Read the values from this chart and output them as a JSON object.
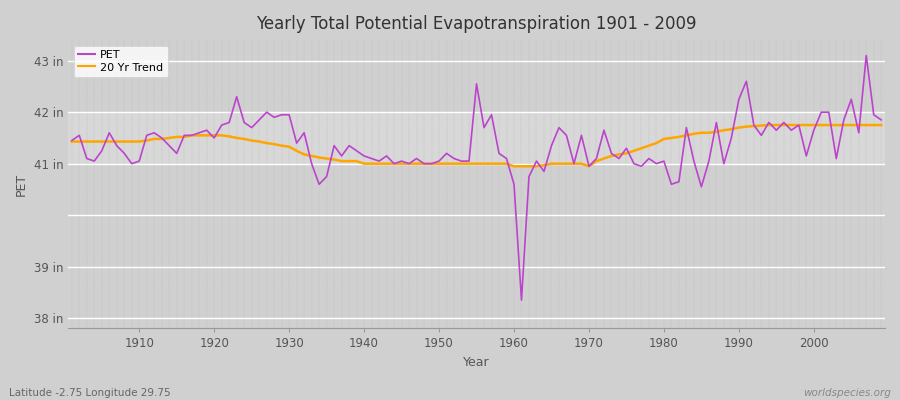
{
  "title": "Yearly Total Potential Evapotranspiration 1901 - 2009",
  "ylabel": "PET",
  "xlabel": "Year",
  "pet_color": "#bb44cc",
  "trend_color": "#ffa500",
  "bg_color": "#d8d8d8",
  "plot_bg_color": "#d8d8d8",
  "footer_left": "Latitude -2.75 Longitude 29.75",
  "footer_right": "worldspecies.org",
  "ylim": [
    37.8,
    43.4
  ],
  "ytick_labels": [
    "38 in",
    "39 in",
    "41 in",
    "42 in",
    "43 in"
  ],
  "ytick_values": [
    38,
    39,
    41,
    42,
    43
  ],
  "years": [
    1901,
    1902,
    1903,
    1904,
    1905,
    1906,
    1907,
    1908,
    1909,
    1910,
    1911,
    1912,
    1913,
    1914,
    1915,
    1916,
    1917,
    1918,
    1919,
    1920,
    1921,
    1922,
    1923,
    1924,
    1925,
    1926,
    1927,
    1928,
    1929,
    1930,
    1931,
    1932,
    1933,
    1934,
    1935,
    1936,
    1937,
    1938,
    1939,
    1940,
    1941,
    1942,
    1943,
    1944,
    1945,
    1946,
    1947,
    1948,
    1949,
    1950,
    1951,
    1952,
    1953,
    1954,
    1955,
    1956,
    1957,
    1958,
    1959,
    1960,
    1961,
    1962,
    1963,
    1964,
    1965,
    1966,
    1967,
    1968,
    1969,
    1970,
    1971,
    1972,
    1973,
    1974,
    1975,
    1976,
    1977,
    1978,
    1979,
    1980,
    1981,
    1982,
    1983,
    1984,
    1985,
    1986,
    1987,
    1988,
    1989,
    1990,
    1991,
    1992,
    1993,
    1994,
    1995,
    1996,
    1997,
    1998,
    1999,
    2000,
    2001,
    2002,
    2003,
    2004,
    2005,
    2006,
    2007,
    2008,
    2009
  ],
  "pet_values": [
    41.45,
    41.55,
    41.1,
    41.05,
    41.25,
    41.6,
    41.35,
    41.2,
    41.0,
    41.05,
    41.55,
    41.6,
    41.5,
    41.35,
    41.2,
    41.55,
    41.55,
    41.6,
    41.65,
    41.5,
    41.75,
    41.8,
    42.3,
    41.8,
    41.7,
    41.85,
    42.0,
    41.9,
    41.95,
    41.95,
    41.4,
    41.6,
    41.0,
    40.6,
    40.75,
    41.35,
    41.15,
    41.35,
    41.25,
    41.15,
    41.1,
    41.05,
    41.15,
    41.0,
    41.05,
    41.0,
    41.1,
    41.0,
    41.0,
    41.05,
    41.2,
    41.1,
    41.05,
    41.05,
    42.55,
    41.7,
    41.95,
    41.2,
    41.1,
    40.6,
    38.35,
    40.75,
    41.05,
    40.85,
    41.35,
    41.7,
    41.55,
    41.0,
    41.55,
    40.95,
    41.1,
    41.65,
    41.2,
    41.1,
    41.3,
    41.0,
    40.95,
    41.1,
    41.0,
    41.05,
    40.6,
    40.65,
    41.7,
    41.05,
    40.55,
    41.05,
    41.8,
    41.0,
    41.5,
    42.25,
    42.6,
    41.75,
    41.55,
    41.8,
    41.65,
    41.8,
    41.65,
    41.75,
    41.15,
    41.65,
    42.0,
    42.0,
    41.1,
    41.85,
    42.25,
    41.6,
    43.1,
    41.95,
    41.85
  ],
  "trend_values": [
    41.43,
    41.43,
    41.43,
    41.43,
    41.43,
    41.43,
    41.43,
    41.43,
    41.43,
    41.43,
    41.45,
    41.48,
    41.48,
    41.5,
    41.52,
    41.52,
    41.55,
    41.55,
    41.55,
    41.55,
    41.55,
    41.53,
    41.5,
    41.48,
    41.45,
    41.43,
    41.4,
    41.38,
    41.35,
    41.33,
    41.25,
    41.18,
    41.15,
    41.12,
    41.1,
    41.08,
    41.05,
    41.05,
    41.05,
    41.0,
    41.0,
    41.0,
    41.0,
    41.0,
    41.0,
    41.0,
    41.0,
    41.0,
    41.0,
    41.0,
    41.0,
    41.0,
    41.0,
    41.0,
    41.0,
    41.0,
    41.0,
    41.0,
    41.0,
    40.95,
    40.95,
    40.95,
    40.95,
    40.97,
    41.0,
    41.0,
    41.0,
    41.0,
    41.0,
    40.95,
    41.05,
    41.1,
    41.15,
    41.18,
    41.2,
    41.25,
    41.3,
    41.35,
    41.4,
    41.48,
    41.5,
    41.52,
    41.55,
    41.58,
    41.6,
    41.6,
    41.62,
    41.65,
    41.67,
    41.7,
    41.72,
    41.73,
    41.74,
    41.75,
    41.75,
    41.75,
    41.75,
    41.75,
    41.75,
    41.75,
    41.75,
    41.75,
    41.75,
    41.75,
    41.75,
    41.75,
    41.75,
    41.75,
    41.75
  ]
}
